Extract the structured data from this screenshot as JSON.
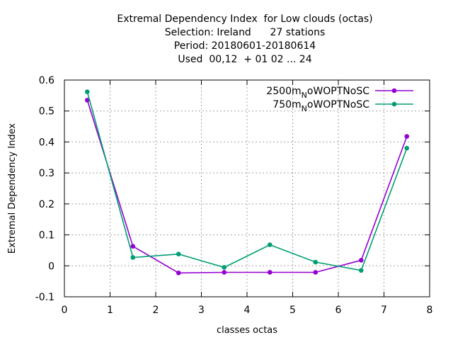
{
  "chart_data": {
    "type": "line",
    "title_lines": [
      "Extremal Dependency Index  for Low clouds (octas)",
      "Selection: Ireland      27 stations",
      "Period: 20180601-20180614",
      "Used  00,12  + 01 02 ... 24"
    ],
    "xlabel": "classes octas",
    "ylabel": "Extremal Dependency Index",
    "xlim": [
      0,
      8
    ],
    "ylim": [
      -0.1,
      0.6
    ],
    "xticks": [
      0,
      1,
      2,
      3,
      4,
      5,
      6,
      7,
      8
    ],
    "yticks": [
      -0.1,
      0,
      0.1,
      0.2,
      0.3,
      0.4,
      0.5,
      0.6
    ],
    "xtick_labels": [
      "0",
      "1",
      "2",
      "3",
      "4",
      "5",
      "6",
      "7",
      "8"
    ],
    "ytick_labels": [
      "-0.1",
      "0",
      "0.1",
      "0.2",
      "0.3",
      "0.4",
      "0.5",
      "0.6"
    ],
    "grid": true,
    "legend_position": "top-right",
    "x": [
      0.5,
      1.5,
      2.5,
      3.5,
      4.5,
      5.5,
      6.5,
      7.5
    ],
    "series": [
      {
        "name_main": "2500m",
        "name_sub": "N",
        "name_rest": "oWOPTNoSC",
        "color": "#9400d3",
        "values": [
          0.535,
          0.063,
          -0.023,
          -0.021,
          -0.021,
          -0.021,
          0.018,
          0.418
        ]
      },
      {
        "name_main": "750m",
        "name_sub": "N",
        "name_rest": "oWOPTNoSC",
        "color": "#009e73",
        "values": [
          0.562,
          0.027,
          0.038,
          -0.005,
          0.068,
          0.012,
          -0.015,
          0.38
        ]
      }
    ]
  }
}
